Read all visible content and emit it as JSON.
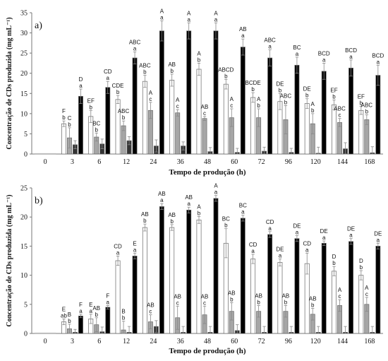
{
  "chart_data": [
    {
      "panel_label": "a)",
      "type": "bar",
      "xlabel": "Tempo de produção (h)",
      "ylabel": "Concentração de CDs produzida (mg mL⁻¹)",
      "ylim": [
        0,
        35
      ],
      "yticks": [
        0,
        5,
        10,
        15,
        20,
        25,
        30,
        35
      ],
      "categories": [
        "0",
        "3",
        "6",
        "12",
        "24",
        "36",
        "48",
        "60",
        "72",
        "96",
        "120",
        "144",
        "168"
      ],
      "series": [
        {
          "fill": "#ffffff",
          "values": [
            0,
            7.5,
            9.3,
            13.5,
            18.0,
            18.3,
            21.0,
            17.3,
            14.0,
            13.0,
            12.5,
            12.2,
            10.8
          ],
          "errors": [
            0,
            0.7,
            1.5,
            1.0,
            1.5,
            1.5,
            1.5,
            1.2,
            1.2,
            2.0,
            1.2,
            1.2,
            1.0
          ],
          "top_labels": [
            "",
            "F",
            "EF",
            "CDE",
            "ABC",
            "AB",
            "A",
            "ABCD",
            "BCDE",
            "DE",
            "DE",
            "EF",
            "EF"
          ],
          "bottom_labels": [
            "",
            "b",
            "b",
            "b",
            "b",
            "b",
            "b",
            "b",
            "b",
            "b",
            "b",
            "b",
            "b"
          ]
        },
        {
          "fill": "#a6a6a6",
          "values": [
            0,
            4.0,
            4.2,
            7.0,
            10.8,
            10.2,
            8.8,
            9.0,
            9.0,
            8.5,
            7.5,
            7.8,
            8.5
          ],
          "errors": [
            0,
            2.5,
            1.0,
            1.2,
            2.0,
            0.8,
            0.5,
            2.2,
            2.2,
            3.5,
            2.5,
            1.0,
            1.2
          ],
          "top_labels": [
            "",
            "C",
            "BC",
            "ABC",
            "A",
            "A",
            "AB",
            "A",
            "A",
            "ABC",
            "A",
            "ABC",
            "ABC"
          ],
          "bottom_labels": [
            "",
            "b",
            "b",
            "b",
            "c",
            "c",
            "c",
            "c",
            "b",
            "b",
            "b",
            "c",
            "b"
          ]
        },
        {
          "fill": "#333333",
          "values": [
            0,
            2.3,
            2.5,
            3.3,
            2.0,
            2.0,
            0.6,
            0.4,
            0.7,
            0.4,
            0.2,
            1.3,
            0.3
          ],
          "errors": [
            0,
            1.0,
            1.2,
            1.0,
            1.5,
            1.0,
            1.0,
            1.0,
            1.0,
            1.0,
            1.5,
            1.5,
            1.5
          ],
          "top_labels": [
            "",
            "",
            "",
            "",
            "",
            "",
            "",
            "",
            "",
            "",
            "",
            "",
            ""
          ],
          "bottom_labels": [
            "",
            "",
            "",
            "",
            "",
            "",
            "",
            "",
            "",
            "",
            "",
            "",
            ""
          ]
        },
        {
          "fill": "#000000",
          "values": [
            0,
            14.3,
            16.5,
            23.8,
            30.5,
            30.5,
            30.5,
            26.5,
            23.8,
            22.0,
            20.5,
            21.3,
            19.5
          ],
          "errors": [
            0,
            1.8,
            1.5,
            1.5,
            2.5,
            2.0,
            2.0,
            2.0,
            2.0,
            2.0,
            2.0,
            2.0,
            2.5
          ],
          "top_labels": [
            "",
            "D",
            "CD",
            "ABC",
            "A",
            "A",
            "A",
            "AB",
            "ABC",
            "BC",
            "BCD",
            "BCD",
            "BCD"
          ],
          "bottom_labels": [
            "",
            "a",
            "a",
            "a",
            "a",
            "a",
            "a",
            "a",
            "a",
            "a",
            "a",
            "a",
            "a"
          ]
        }
      ]
    },
    {
      "panel_label": "b)",
      "type": "bar",
      "xlabel": "Tempo de produção (h)",
      "ylabel": "Concentração de CDs produzida (mg mL⁻¹)",
      "ylim": [
        0,
        25
      ],
      "yticks": [
        0,
        5,
        10,
        15,
        20,
        25
      ],
      "categories": [
        "0",
        "3",
        "6",
        "12",
        "24",
        "36",
        "48",
        "60",
        "72",
        "96",
        "120",
        "144",
        "168"
      ],
      "series": [
        {
          "fill": "#ffffff",
          "values": [
            0,
            2.0,
            2.5,
            12.5,
            18.2,
            18.2,
            19.5,
            15.5,
            12.8,
            12.2,
            12.0,
            10.7,
            10.0
          ],
          "errors": [
            0,
            0.5,
            0.8,
            0.8,
            0.6,
            0.5,
            0.6,
            2.5,
            0.8,
            0.6,
            1.8,
            0.8,
            0.8
          ],
          "top_labels": [
            "",
            "E",
            "E",
            "CD",
            "AB",
            "AB",
            "A",
            "BC",
            "CD",
            "DE",
            "CD",
            "D",
            "D"
          ],
          "bottom_labels": [
            "",
            "ab",
            "a",
            "a",
            "b",
            "b",
            "b",
            "b",
            "a",
            "a",
            "a",
            "b",
            "b"
          ]
        },
        {
          "fill": "#a6a6a6",
          "values": [
            0,
            0.8,
            1.5,
            0.6,
            2.0,
            2.7,
            3.2,
            3.8,
            3.8,
            3.8,
            3.3,
            4.8,
            5.0
          ],
          "errors": [
            0,
            0.8,
            1.2,
            1.5,
            1.2,
            2.0,
            1.5,
            1.5,
            1.0,
            1.0,
            1.0,
            1.0,
            1.2
          ],
          "top_labels": [
            "",
            "B",
            "AB",
            "B",
            "AB",
            "AB",
            "AB",
            "AB",
            "AB",
            "AB",
            "AB",
            "A",
            "A"
          ],
          "bottom_labels": [
            "",
            "b",
            "b",
            "b",
            "c",
            "c",
            "c",
            "b",
            "b",
            "b",
            "b",
            "c",
            "c"
          ]
        },
        {
          "fill": "#333333",
          "values": [
            0,
            0.2,
            0.3,
            0.2,
            1.2,
            0.2,
            0.2,
            0.5,
            0.2,
            0.2,
            0.2,
            0.2,
            0.2
          ],
          "errors": [
            0,
            0.5,
            0.8,
            1.0,
            1.0,
            1.0,
            1.0,
            1.0,
            1.0,
            1.0,
            1.0,
            1.0,
            1.0
          ],
          "top_labels": [
            "",
            "",
            "",
            "",
            "",
            "",
            "",
            "",
            "",
            "",
            "",
            "",
            ""
          ],
          "bottom_labels": [
            "",
            "",
            "",
            "",
            "",
            "",
            "",
            "",
            "",
            "",
            "",
            "",
            ""
          ]
        },
        {
          "fill": "#000000",
          "values": [
            0,
            3.0,
            4.5,
            13.3,
            21.8,
            21.2,
            23.2,
            19.8,
            17.0,
            16.3,
            15.5,
            15.8,
            15.0
          ],
          "errors": [
            0,
            0.3,
            0.3,
            0.5,
            0.5,
            0.5,
            0.5,
            0.5,
            0.5,
            0.5,
            0.4,
            0.5,
            0.5
          ],
          "top_labels": [
            "",
            "F",
            "F",
            "E",
            "AB",
            "AB",
            "A",
            "BC",
            "CD",
            "DE",
            "DE",
            "DE",
            "DE"
          ],
          "bottom_labels": [
            "",
            "a",
            "a",
            "a",
            "a",
            "a",
            "a",
            "a",
            "a",
            "a",
            "a",
            "a",
            "a"
          ]
        }
      ]
    }
  ]
}
